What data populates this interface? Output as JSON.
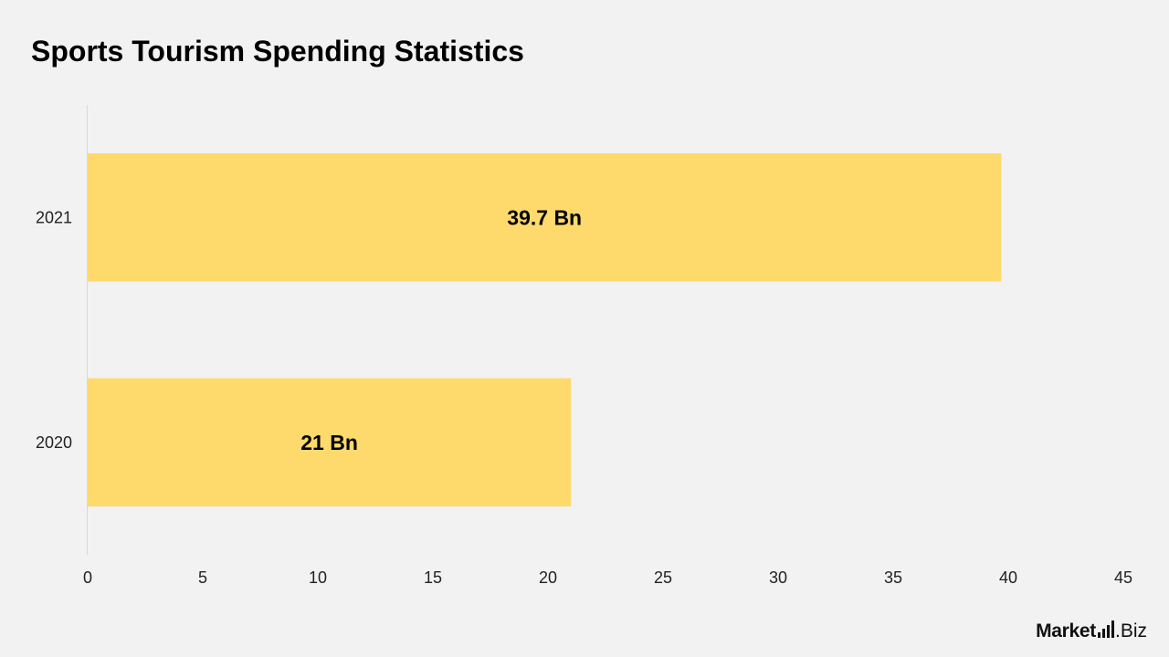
{
  "chart_data": {
    "type": "bar",
    "orientation": "horizontal",
    "title": "Sports Tourism Spending Statistics",
    "xlabel": "",
    "ylabel": "",
    "categories": [
      "2021",
      "2020"
    ],
    "values": [
      39.7,
      21
    ],
    "data_labels": [
      "39.7 Bn",
      "21 Bn"
    ],
    "xlim": [
      0,
      45
    ],
    "x_ticks": [
      "0",
      "5",
      "10",
      "15",
      "20",
      "25",
      "30",
      "35",
      "40",
      "45"
    ],
    "grid": false,
    "legend": "none",
    "bar_color": "#fed96c"
  },
  "branding": {
    "logo_main": "Market",
    "logo_tail": ".Biz",
    "logo_text": "Market.Biz"
  },
  "colors": {
    "background": "#f2f2f2",
    "bar": "#fed96c",
    "text": "#000000"
  }
}
